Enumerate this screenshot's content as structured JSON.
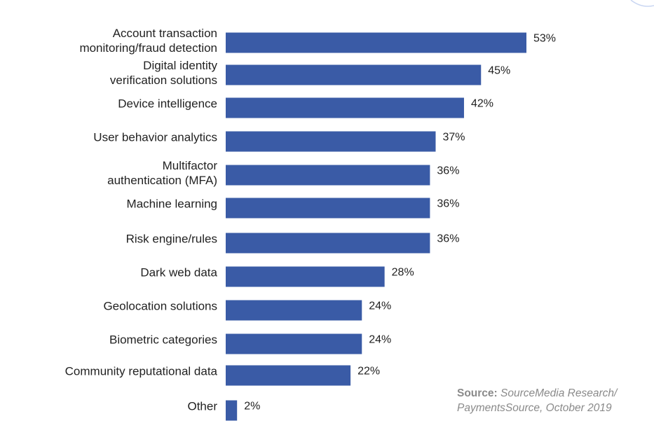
{
  "chart_data": {
    "type": "bar",
    "orientation": "horizontal",
    "categories": [
      [
        "Account transaction",
        "monitoring/fraud detection"
      ],
      [
        "Digital identity",
        "verification solutions"
      ],
      [
        "Device intelligence"
      ],
      [
        "User behavior analytics"
      ],
      [
        "Multifactor",
        "authentication (MFA)"
      ],
      [
        "Machine learning"
      ],
      [
        "Risk engine/rules"
      ],
      [
        "Dark web data"
      ],
      [
        "Geolocation solutions"
      ],
      [
        "Biometric categories"
      ],
      [
        "Community reputational data"
      ],
      [
        "Other"
      ]
    ],
    "values": [
      53,
      45,
      42,
      37,
      36,
      36,
      36,
      28,
      24,
      24,
      22,
      2
    ],
    "value_labels": [
      "53%",
      "45%",
      "42%",
      "37%",
      "36%",
      "36%",
      "36%",
      "28%",
      "24%",
      "24%",
      "22%",
      "2%"
    ],
    "title": "",
    "xlabel": "",
    "ylabel": "",
    "xlim": [
      0,
      53
    ],
    "grid": false,
    "bar_color": "#3a5ba6"
  },
  "source": {
    "prefix": "Source:",
    "text_line1": "SourceMedia Research/",
    "text_line2": "PaymentsSource, October 2019"
  },
  "colors": {
    "bar": "#3a5ba6",
    "text": "#222222",
    "source_text": "#8a8a8a",
    "corner_arc": "#c9d6f2"
  }
}
